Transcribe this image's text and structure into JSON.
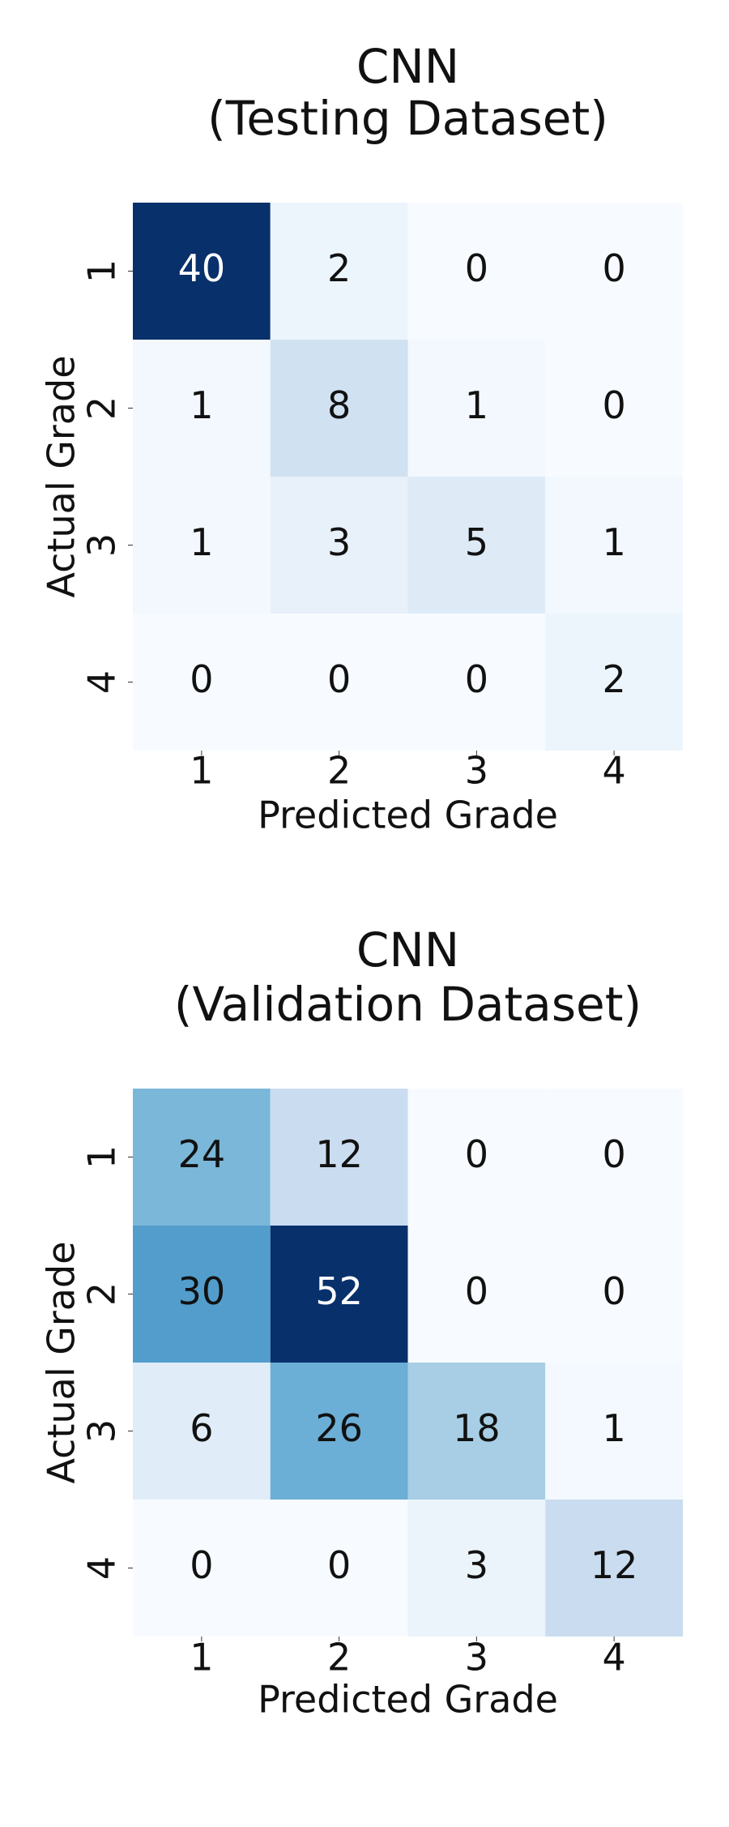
{
  "chart_data": [
    {
      "type": "heatmap",
      "title": "CNN",
      "subtitle": "(Testing Dataset)",
      "x_label": "Predicted Grade",
      "y_label": "Actual Grade",
      "x_categories": [
        "1",
        "2",
        "3",
        "4"
      ],
      "y_categories": [
        "1",
        "2",
        "3",
        "4"
      ],
      "values": [
        [
          40,
          2,
          0,
          0
        ],
        [
          1,
          8,
          1,
          0
        ],
        [
          1,
          3,
          5,
          1
        ],
        [
          0,
          0,
          0,
          2
        ]
      ],
      "colormap": "Blues"
    },
    {
      "type": "heatmap",
      "title": "CNN",
      "subtitle": "(Validation Dataset)",
      "x_label": "Predicted Grade",
      "y_label": "Actual Grade",
      "x_categories": [
        "1",
        "2",
        "3",
        "4"
      ],
      "y_categories": [
        "1",
        "2",
        "3",
        "4"
      ],
      "values": [
        [
          24,
          12,
          0,
          0
        ],
        [
          30,
          52,
          0,
          0
        ],
        [
          6,
          26,
          18,
          1
        ],
        [
          0,
          0,
          3,
          12
        ]
      ],
      "colormap": "Blues"
    }
  ]
}
